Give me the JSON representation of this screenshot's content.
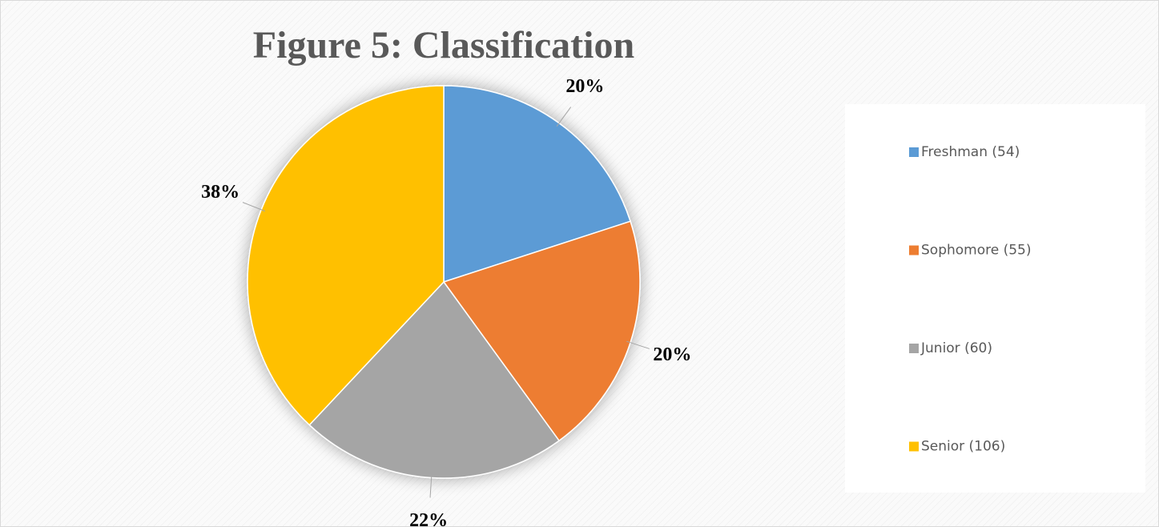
{
  "chart_data": {
    "type": "pie",
    "title": "Figure 5:  Classification",
    "categories": [
      "Freshman (54)",
      "Sophomore (55)",
      "Junior (60)",
      "Senior (106)"
    ],
    "values": [
      20,
      20,
      22,
      38
    ],
    "value_labels": [
      "20%",
      "20%",
      "22%",
      "38%"
    ],
    "colors": [
      "#5b9bd5",
      "#ed7d31",
      "#a5a5a5",
      "#ffc000"
    ],
    "legend": "right"
  }
}
